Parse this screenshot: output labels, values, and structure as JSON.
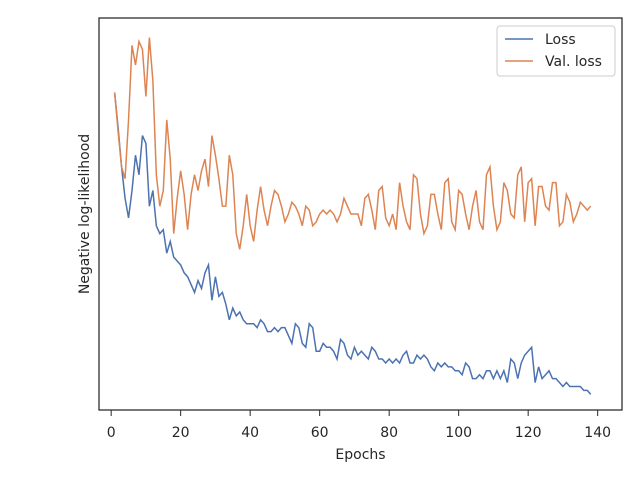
{
  "chart_data": {
    "type": "line",
    "xlabel": "Epochs",
    "ylabel": "Negative log-likelihood",
    "xlim": [
      -3.5,
      147
    ],
    "ylim": [
      0,
      100
    ],
    "xticks": [
      0,
      20,
      40,
      60,
      80,
      100,
      120,
      140
    ],
    "grid": false,
    "legend": "upper right",
    "x": [
      1,
      2,
      3,
      4,
      5,
      6,
      7,
      8,
      9,
      10,
      11,
      12,
      13,
      14,
      15,
      16,
      17,
      18,
      19,
      20,
      21,
      22,
      23,
      24,
      25,
      26,
      27,
      28,
      29,
      30,
      31,
      32,
      33,
      34,
      35,
      36,
      37,
      38,
      39,
      40,
      41,
      42,
      43,
      44,
      45,
      46,
      47,
      48,
      49,
      50,
      51,
      52,
      53,
      54,
      55,
      56,
      57,
      58,
      59,
      60,
      61,
      62,
      63,
      64,
      65,
      66,
      67,
      68,
      69,
      70,
      71,
      72,
      73,
      74,
      75,
      76,
      77,
      78,
      79,
      80,
      81,
      82,
      83,
      84,
      85,
      86,
      87,
      88,
      89,
      90,
      91,
      92,
      93,
      94,
      95,
      96,
      97,
      98,
      99,
      100,
      101,
      102,
      103,
      104,
      105,
      106,
      107,
      108,
      109,
      110,
      111,
      112,
      113,
      114,
      115,
      116,
      117,
      118,
      119,
      120,
      121,
      122,
      123,
      124,
      125,
      126,
      127,
      128,
      129,
      130,
      131,
      132,
      133,
      134,
      135,
      136,
      137,
      138
    ],
    "series": [
      {
        "name": "Loss",
        "color": "#4c72b0",
        "values": [
          81,
          72,
          62,
          54,
          49,
          56,
          65,
          60,
          70,
          68,
          52,
          56,
          47,
          45,
          46,
          40,
          43,
          39,
          38,
          37,
          35,
          34,
          32,
          30,
          33,
          31,
          35,
          37,
          28,
          34,
          29,
          30,
          27,
          23,
          26,
          24,
          25,
          23,
          22,
          22,
          22,
          21,
          23,
          22,
          20,
          20,
          21,
          20,
          21,
          21,
          19,
          17,
          22,
          21,
          17,
          16,
          22,
          21,
          15,
          15,
          17,
          16,
          16,
          15,
          13,
          18,
          17,
          14,
          13,
          16,
          14,
          15,
          14,
          13,
          16,
          15,
          13,
          13,
          12,
          13,
          12,
          13,
          12,
          14,
          15,
          12,
          12,
          14,
          13,
          14,
          13,
          11,
          10,
          12,
          11,
          12,
          11,
          11,
          10,
          10,
          9,
          12,
          11,
          8,
          8,
          9,
          8,
          10,
          10,
          8,
          10,
          8,
          10,
          7,
          13,
          12,
          8,
          12,
          14,
          15,
          16,
          7,
          11,
          8,
          9,
          10,
          8,
          8,
          7,
          6,
          7,
          6,
          6,
          6,
          6,
          5,
          5,
          4
        ]
      },
      {
        "name": "Val. loss",
        "color": "#dd8452",
        "values": [
          81,
          71,
          62,
          59,
          74,
          93,
          88,
          94,
          92,
          80,
          95,
          84,
          60,
          52,
          56,
          74,
          64,
          45,
          54,
          61,
          55,
          46,
          55,
          60,
          56,
          61,
          64,
          57,
          70,
          65,
          59,
          52,
          52,
          65,
          60,
          45,
          41,
          47,
          55,
          47,
          43,
          51,
          57,
          51,
          47,
          52,
          56,
          55,
          52,
          48,
          50,
          53,
          52,
          50,
          47,
          52,
          51,
          47,
          48,
          50,
          51,
          50,
          51,
          50,
          48,
          50,
          54,
          52,
          50,
          50,
          50,
          47,
          54,
          55,
          51,
          46,
          56,
          57,
          49,
          47,
          50,
          46,
          58,
          52,
          48,
          46,
          60,
          59,
          50,
          45,
          47,
          55,
          55,
          50,
          46,
          58,
          59,
          48,
          46,
          56,
          55,
          50,
          46,
          52,
          56,
          48,
          46,
          60,
          62,
          52,
          46,
          48,
          58,
          56,
          50,
          49,
          60,
          62,
          48,
          58,
          59,
          47,
          57,
          57,
          52,
          51,
          58,
          58,
          47,
          48,
          55,
          53,
          48,
          50,
          53,
          52,
          51,
          52
        ]
      }
    ]
  }
}
